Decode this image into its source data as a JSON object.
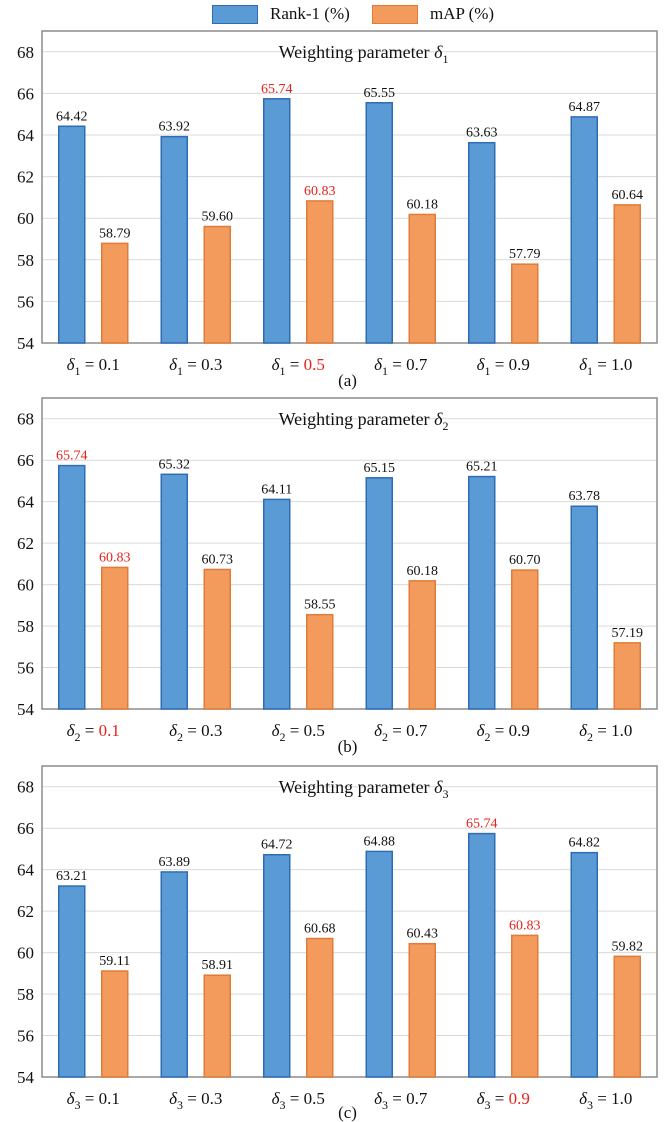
{
  "legend": {
    "rank1": {
      "label": "Rank-1 (%)",
      "color": "#5b9bd5",
      "border": "#2e6cb5"
    },
    "map": {
      "label": "mAP (%)",
      "color": "#f29b5c",
      "border": "#e07b39"
    }
  },
  "highlight_color": "#e8221b",
  "chart_data": [
    {
      "type": "bar",
      "title_text": "Weighting parameter",
      "title_symbol": "δ",
      "title_sub": "1",
      "caption": "(a)",
      "ylim": [
        54,
        69
      ],
      "yticks": [
        54,
        56,
        58,
        60,
        62,
        64,
        66,
        68
      ],
      "grid": true,
      "categories": [
        {
          "symbol": "δ",
          "sub": "1",
          "eq": " = ",
          "value": "0.1",
          "highlight": false
        },
        {
          "symbol": "δ",
          "sub": "1",
          "eq": " = ",
          "value": "0.3",
          "highlight": false
        },
        {
          "symbol": "δ",
          "sub": "1",
          "eq": " = ",
          "value": "0.5",
          "highlight": true
        },
        {
          "symbol": "δ",
          "sub": "1",
          "eq": " = ",
          "value": "0.7",
          "highlight": false
        },
        {
          "symbol": "δ",
          "sub": "1",
          "eq": " = ",
          "value": "0.9",
          "highlight": false
        },
        {
          "symbol": "δ",
          "sub": "1",
          "eq": " = ",
          "value": "1.0",
          "highlight": false
        }
      ],
      "series": [
        {
          "name": "Rank-1 (%)",
          "values": [
            64.42,
            63.92,
            65.74,
            65.55,
            63.63,
            64.87
          ],
          "labels": [
            "64.42",
            "63.92",
            "65.74",
            "65.55",
            "63.63",
            "64.87"
          ]
        },
        {
          "name": "mAP (%)",
          "values": [
            58.79,
            59.6,
            60.83,
            60.18,
            57.79,
            60.64
          ],
          "labels": [
            "58.79",
            "59.60",
            "60.83",
            "60.18",
            "57.79",
            "60.64"
          ]
        }
      ]
    },
    {
      "type": "bar",
      "title_text": "Weighting parameter",
      "title_symbol": "δ",
      "title_sub": "2",
      "caption": "(b)",
      "ylim": [
        54,
        69
      ],
      "yticks": [
        54,
        56,
        58,
        60,
        62,
        64,
        66,
        68
      ],
      "grid": true,
      "categories": [
        {
          "symbol": "δ",
          "sub": "2",
          "eq": " = ",
          "value": "0.1",
          "highlight": true
        },
        {
          "symbol": "δ",
          "sub": "2",
          "eq": " = ",
          "value": "0.3",
          "highlight": false
        },
        {
          "symbol": "δ",
          "sub": "2",
          "eq": " = ",
          "value": "0.5",
          "highlight": false
        },
        {
          "symbol": "δ",
          "sub": "2",
          "eq": " = ",
          "value": "0.7",
          "highlight": false
        },
        {
          "symbol": "δ",
          "sub": "2",
          "eq": " = ",
          "value": "0.9",
          "highlight": false
        },
        {
          "symbol": "δ",
          "sub": "2",
          "eq": " = ",
          "value": "1.0",
          "highlight": false
        }
      ],
      "series": [
        {
          "name": "Rank-1 (%)",
          "values": [
            65.74,
            65.32,
            64.11,
            65.15,
            65.21,
            63.78
          ],
          "labels": [
            "65.74",
            "65.32",
            "64.11",
            "65.15",
            "65.21",
            "63.78"
          ]
        },
        {
          "name": "mAP (%)",
          "values": [
            60.83,
            60.73,
            58.55,
            60.18,
            60.7,
            57.19
          ],
          "labels": [
            "60.83",
            "60.73",
            "58.55",
            "60.18",
            "60.70",
            "57.19"
          ]
        }
      ]
    },
    {
      "type": "bar",
      "title_text": "Weighting parameter",
      "title_symbol": "δ",
      "title_sub": "3",
      "caption": "(c)",
      "ylim": [
        54,
        69
      ],
      "yticks": [
        54,
        56,
        58,
        60,
        62,
        64,
        66,
        68
      ],
      "grid": true,
      "categories": [
        {
          "symbol": "δ",
          "sub": "3",
          "eq": " = ",
          "value": "0.1",
          "highlight": false
        },
        {
          "symbol": "δ",
          "sub": "3",
          "eq": " = ",
          "value": "0.3",
          "highlight": false
        },
        {
          "symbol": "δ",
          "sub": "3",
          "eq": " = ",
          "value": "0.5",
          "highlight": false
        },
        {
          "symbol": "δ",
          "sub": "3",
          "eq": " = ",
          "value": "0.7",
          "highlight": false
        },
        {
          "symbol": "δ",
          "sub": "3",
          "eq": " = ",
          "value": "0.9",
          "highlight": true
        },
        {
          "symbol": "δ",
          "sub": "3",
          "eq": " = ",
          "value": "1.0",
          "highlight": false
        }
      ],
      "series": [
        {
          "name": "Rank-1 (%)",
          "values": [
            63.21,
            63.89,
            64.72,
            64.88,
            65.74,
            64.82
          ],
          "labels": [
            "63.21",
            "63.89",
            "64.72",
            "64.88",
            "65.74",
            "64.82"
          ]
        },
        {
          "name": "mAP (%)",
          "values": [
            59.11,
            58.91,
            60.68,
            60.43,
            60.83,
            59.82
          ],
          "labels": [
            "59.11",
            "58.91",
            "60.68",
            "60.43",
            "60.83",
            "59.82"
          ]
        }
      ]
    }
  ]
}
